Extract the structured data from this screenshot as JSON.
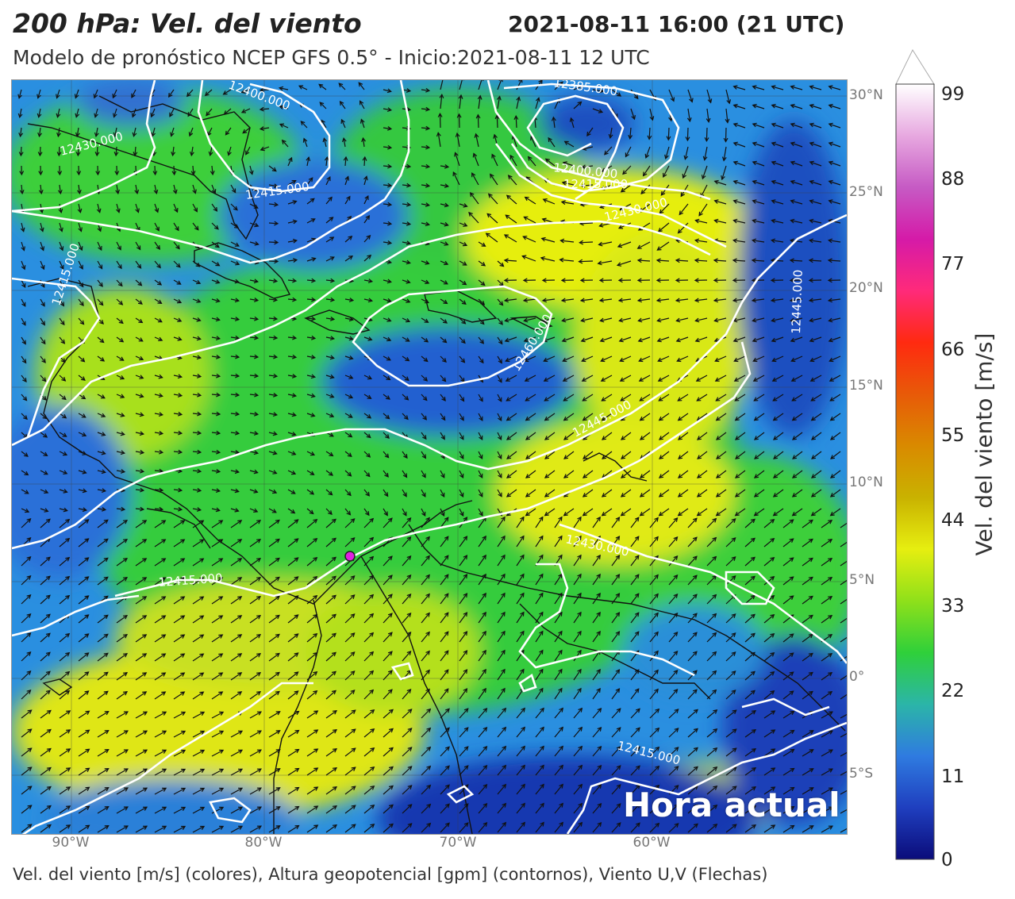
{
  "title": "200 hPa: Vel. del viento",
  "datetime": "2021-08-11 16:00 (21 UTC)",
  "subtitle": "Modelo de pronóstico NCEP GFS 0.5° - Inicio:2021-08-11 12 UTC",
  "footer": "Vel. del viento [m/s] (colores), Altura geopotencial [gpm] (contornos), Viento U,V (Flechas)",
  "overlay_text": "Hora actual",
  "lat_labels": [
    "30°N",
    "25°N",
    "20°N",
    "15°N",
    "10°N",
    "5°N",
    "0°",
    "5°S"
  ],
  "lon_labels": [
    "90°W",
    "80°W",
    "70°W",
    "60°W"
  ],
  "contour_labels": [
    "12400.000",
    "12430.000",
    "12415.000",
    "12385.000",
    "12400.000",
    "12415.000",
    "12430.000",
    "12415.000",
    "12460.000",
    "12445.000",
    "12445.000",
    "12430.000",
    "12415.000",
    "12415.000"
  ],
  "colorbar": {
    "label": "Vel. del viento [m/s]",
    "ticks": [
      "99",
      "88",
      "77",
      "66",
      "55",
      "44",
      "33",
      "22",
      "11",
      "0"
    ],
    "colors": [
      "#0b0c7a",
      "#1f3fbf",
      "#2f7be0",
      "#2bb5a8",
      "#2fd03a",
      "#8fe01a",
      "#e6ee10",
      "#c9b200",
      "#d98a00",
      "#e85a08",
      "#ff2a10",
      "#ff2a7a",
      "#d51aa8",
      "#c65ac4",
      "#e7a8e0",
      "#ffffff"
    ]
  },
  "marker": {
    "color": "#e020e0"
  }
}
